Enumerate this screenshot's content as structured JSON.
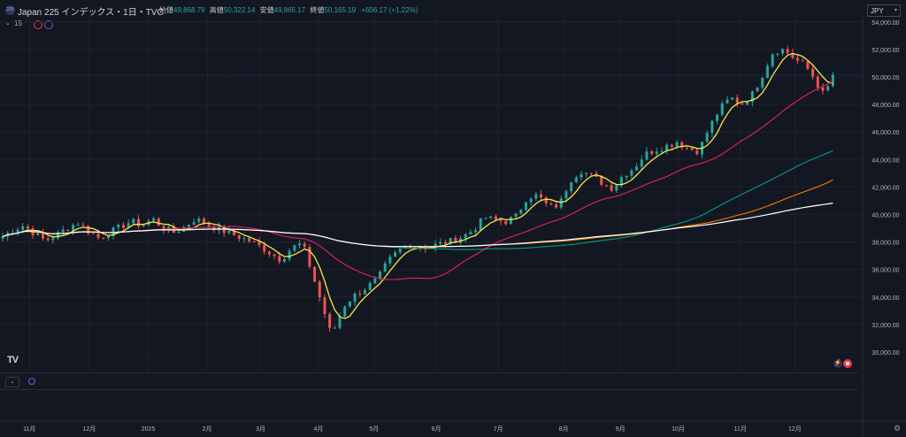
{
  "header": {
    "symbol_badge": "225",
    "title": "Japan 225 インデックス・1日・TVC",
    "open_label": "始値",
    "open": "49,868.79",
    "high_label": "高値",
    "high": "50,322.14",
    "low_label": "安値",
    "low": "49,865.17",
    "close_label": "終値",
    "close": "50,165.19",
    "change": "+606.17 (+1.22%)"
  },
  "indicators": {
    "count": "15"
  },
  "currency": "JPY",
  "logo": "TV",
  "colors": {
    "background": "#131722",
    "up": "#26a69a",
    "down": "#ef5350",
    "up_text": "#26a69a",
    "ma_yellow": "#f5e94a",
    "ma_pink": "#e91e63",
    "ma_teal": "#089981",
    "ma_orange": "#f57c00",
    "ma_white": "#ffffff"
  },
  "chart_data": {
    "type": "candlestick",
    "ylim": [
      29000,
      55000
    ],
    "yticks": [
      30000,
      32000,
      34000,
      36000,
      38000,
      40000,
      42000,
      44000,
      46000,
      48000,
      50000,
      52000,
      54000
    ],
    "ytick_labels": [
      "30,000.00",
      "32,000.00",
      "34,000.00",
      "36,000.00",
      "38,000.00",
      "40,000.00",
      "42,000.00",
      "44,000.00",
      "46,000.00",
      "48,000.00",
      "50,000.00",
      "52,000.00",
      "54,000.00"
    ],
    "x_months": [
      "11月",
      "12月",
      "2025",
      "2月",
      "3月",
      "4月",
      "5月",
      "6月",
      "7月",
      "8月",
      "9月",
      "10月",
      "11月",
      "12月"
    ],
    "x_month_pos": [
      0.25,
      0.81,
      1.36,
      1.91,
      2.41,
      2.95,
      3.47,
      4.05,
      4.63,
      5.24,
      5.77,
      6.31,
      6.89,
      7.4
    ],
    "closes": [
      [
        0.0,
        38400
      ],
      [
        0.1,
        38900
      ],
      [
        0.2,
        39200
      ],
      [
        0.3,
        38600
      ],
      [
        0.4,
        38100
      ],
      [
        0.5,
        38500
      ],
      [
        0.6,
        39000
      ],
      [
        0.7,
        39400
      ],
      [
        0.8,
        38800
      ],
      [
        0.9,
        38300
      ],
      [
        1.0,
        38700
      ],
      [
        1.1,
        39100
      ],
      [
        1.2,
        39500
      ],
      [
        1.3,
        39200
      ],
      [
        1.4,
        39700
      ],
      [
        1.5,
        39000
      ],
      [
        1.6,
        38700
      ],
      [
        1.7,
        39100
      ],
      [
        1.8,
        39700
      ],
      [
        1.9,
        39300
      ],
      [
        2.0,
        39000
      ],
      [
        2.1,
        38700
      ],
      [
        2.2,
        38400
      ],
      [
        2.3,
        38100
      ],
      [
        2.4,
        37700
      ],
      [
        2.5,
        37200
      ],
      [
        2.6,
        36700
      ],
      [
        2.7,
        37600
      ],
      [
        2.8,
        37900
      ],
      [
        2.9,
        35500
      ],
      [
        3.0,
        33000
      ],
      [
        3.07,
        31200
      ],
      [
        3.13,
        32300
      ],
      [
        3.2,
        33500
      ],
      [
        3.3,
        34200
      ],
      [
        3.4,
        34700
      ],
      [
        3.5,
        35300
      ],
      [
        3.6,
        36600
      ],
      [
        3.7,
        37400
      ],
      [
        3.8,
        37800
      ],
      [
        3.9,
        37600
      ],
      [
        4.0,
        37700
      ],
      [
        4.1,
        37900
      ],
      [
        4.2,
        38100
      ],
      [
        4.3,
        38400
      ],
      [
        4.4,
        38900
      ],
      [
        4.5,
        39800
      ],
      [
        4.6,
        39600
      ],
      [
        4.7,
        39500
      ],
      [
        4.8,
        39900
      ],
      [
        4.9,
        41300
      ],
      [
        5.0,
        41400
      ],
      [
        5.1,
        40500
      ],
      [
        5.2,
        40700
      ],
      [
        5.3,
        42500
      ],
      [
        5.4,
        43200
      ],
      [
        5.5,
        42800
      ],
      [
        5.6,
        42300
      ],
      [
        5.7,
        41900
      ],
      [
        5.8,
        42900
      ],
      [
        5.9,
        43400
      ],
      [
        6.0,
        44400
      ],
      [
        6.1,
        44700
      ],
      [
        6.2,
        45000
      ],
      [
        6.3,
        45300
      ],
      [
        6.4,
        44800
      ],
      [
        6.5,
        44600
      ],
      [
        6.6,
        46300
      ],
      [
        6.7,
        47700
      ],
      [
        6.8,
        48500
      ],
      [
        6.9,
        48000
      ],
      [
        7.0,
        48700
      ],
      [
        7.1,
        50200
      ],
      [
        7.2,
        51900
      ],
      [
        7.3,
        52000
      ],
      [
        7.4,
        51300
      ],
      [
        7.5,
        50800
      ],
      [
        7.6,
        49700
      ],
      [
        7.65,
        48700
      ],
      [
        7.7,
        49200
      ],
      [
        7.78,
        49700
      ]
    ]
  }
}
